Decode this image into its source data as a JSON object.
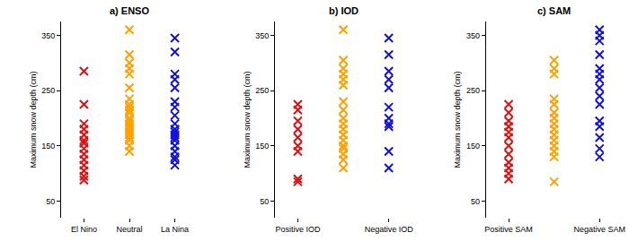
{
  "chart_data": [
    {
      "type": "scatter",
      "title": "a) ENSO",
      "ylabel": "Maximum snow depth (cm)",
      "categories": [
        "El Nino",
        "Neutral",
        "La Nina"
      ],
      "colors": [
        "#dd1111",
        "#ffa000",
        "#1111dd"
      ],
      "marker": "x",
      "grid": false,
      "ylim": [
        20,
        375
      ],
      "yticks": [
        50,
        150,
        250,
        350
      ],
      "values": [
        [
          285,
          225,
          190,
          180,
          170,
          160,
          155,
          145,
          135,
          125,
          115,
          105,
          95,
          88
        ],
        [
          360,
          315,
          300,
          290,
          280,
          255,
          235,
          225,
          220,
          215,
          210,
          200,
          195,
          190,
          185,
          180,
          175,
          170,
          165,
          160,
          150,
          140
        ],
        [
          345,
          320,
          280,
          270,
          255,
          230,
          220,
          205,
          190,
          180,
          175,
          170,
          165,
          160,
          150,
          140,
          130,
          125,
          115
        ]
      ]
    },
    {
      "type": "scatter",
      "title": "b) IOD",
      "ylabel": "Maximum snow depth (cm)",
      "categories": [
        "Positive IOD",
        null,
        "Negative IOD"
      ],
      "colors": [
        "#dd1111",
        "#ffa000",
        "#1111dd"
      ],
      "marker": "x",
      "grid": false,
      "ylim": [
        20,
        375
      ],
      "yticks": [
        50,
        150,
        250,
        350
      ],
      "values": [
        [
          225,
          215,
          195,
          180,
          165,
          150,
          140,
          90,
          85
        ],
        [
          360,
          305,
          290,
          280,
          270,
          260,
          230,
          215,
          200,
          190,
          180,
          170,
          160,
          150,
          145,
          135,
          125,
          110
        ],
        [
          345,
          315,
          285,
          270,
          255,
          220,
          200,
          190,
          185,
          140,
          110
        ]
      ]
    },
    {
      "type": "scatter",
      "title": "c) SAM",
      "ylabel": "Maximum snow depth (cm)",
      "categories": [
        "Positive SAM",
        null,
        "Negative SAM"
      ],
      "colors": [
        "#dd1111",
        "#ffa000",
        "#1111dd"
      ],
      "marker": "x",
      "grid": false,
      "ylim": [
        20,
        375
      ],
      "yticks": [
        50,
        150,
        250,
        350
      ],
      "values": [
        [
          225,
          210,
          195,
          185,
          175,
          165,
          150,
          135,
          120,
          110,
          100,
          90
        ],
        [
          305,
          290,
          280,
          235,
          225,
          210,
          200,
          190,
          180,
          170,
          160,
          150,
          140,
          130,
          85
        ],
        [
          360,
          350,
          340,
          315,
          290,
          280,
          270,
          255,
          240,
          225,
          195,
          185,
          165,
          145,
          130
        ]
      ]
    }
  ]
}
